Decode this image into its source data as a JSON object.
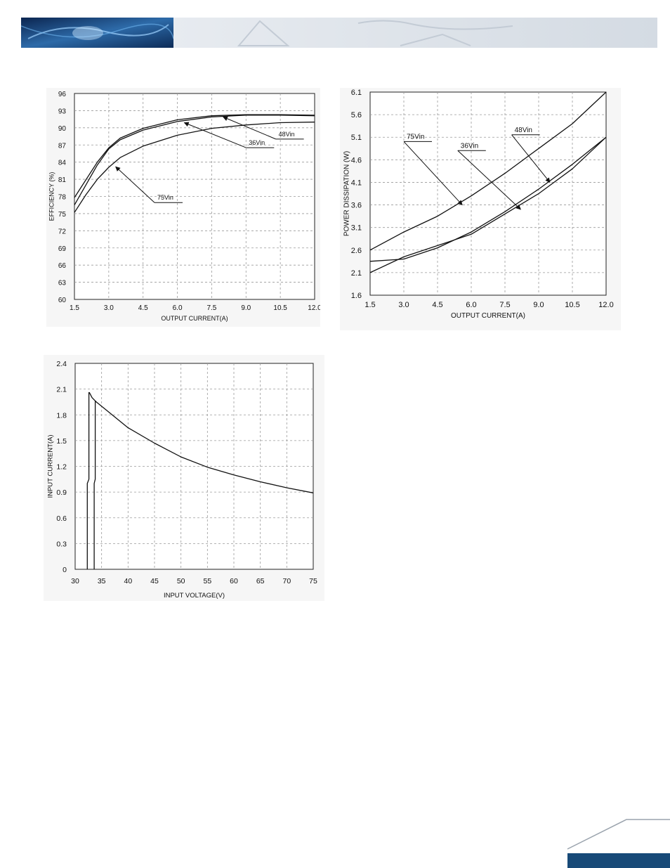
{
  "header": {
    "banner_icon": "brand-graphic-banner",
    "colors": {
      "banner_dark": "#0e2b55",
      "banner_light": "#dde3ea",
      "footer_bar": "#184a78"
    }
  },
  "chart_data": [
    {
      "type": "line",
      "xlabel": "OUTPUT CURRENT(A)",
      "ylabel": "EFFICIENCY (%)",
      "xlim": [
        1.5,
        12.0
      ],
      "ylim": [
        60,
        96
      ],
      "xticks": [
        "1.5",
        "3.0",
        "4.5",
        "6.0",
        "7.5",
        "9.0",
        "10.5",
        "12.0"
      ],
      "yticks": [
        "60",
        "63",
        "66",
        "69",
        "72",
        "75",
        "78",
        "81",
        "84",
        "87",
        "90",
        "93",
        "96"
      ],
      "grid": true,
      "series": [
        {
          "name": "48Vin",
          "x": [
            1.5,
            2.0,
            2.5,
            3.0,
            3.5,
            4.5,
            6.0,
            7.5,
            9.0,
            10.5,
            12.0
          ],
          "values": [
            77.8,
            80.9,
            84.0,
            86.5,
            88.2,
            89.9,
            91.4,
            92.1,
            92.3,
            92.3,
            92.2
          ]
        },
        {
          "name": "36Vin",
          "x": [
            1.5,
            2.0,
            2.5,
            3.0,
            3.5,
            4.5,
            6.0,
            7.5,
            9.0,
            10.5,
            12.0
          ],
          "values": [
            76.5,
            80.0,
            83.5,
            86.3,
            87.9,
            89.6,
            91.1,
            91.9,
            92.2,
            92.2,
            92.1
          ]
        },
        {
          "name": "75Vin",
          "x": [
            1.5,
            2.0,
            2.5,
            3.0,
            3.5,
            4.5,
            6.0,
            7.5,
            9.0,
            10.5,
            12.0
          ],
          "values": [
            75.2,
            78.3,
            81.0,
            83.1,
            84.8,
            86.8,
            88.7,
            89.9,
            90.5,
            90.9,
            91.0
          ]
        }
      ],
      "annotations": [
        {
          "text": "48Vin",
          "arrow_to": [
            8.0,
            91.9
          ],
          "label_at": [
            10.3,
            88.4
          ]
        },
        {
          "text": "36Vin",
          "arrow_to": [
            6.3,
            90.9
          ],
          "label_at": [
            9.0,
            86.9
          ]
        },
        {
          "text": "75Vin",
          "arrow_to": [
            3.3,
            83.2
          ],
          "label_at": [
            5.0,
            77.3
          ]
        }
      ]
    },
    {
      "type": "line",
      "xlabel": "OUTPUT CURRENT(A)",
      "ylabel": "POWER DISSIPATION (W)",
      "xlim": [
        1.5,
        12.0
      ],
      "ylim": [
        1.6,
        6.1
      ],
      "xticks": [
        "1.5",
        "3.0",
        "4.5",
        "6.0",
        "7.5",
        "9.0",
        "10.5",
        "12.0"
      ],
      "yticks": [
        "1.6",
        "2.1",
        "2.6",
        "3.1",
        "3.6",
        "4.1",
        "4.6",
        "5.1",
        "5.6",
        "6.1"
      ],
      "grid": true,
      "series": [
        {
          "name": "75Vin",
          "x": [
            1.5,
            3.0,
            4.5,
            6.0,
            7.5,
            9.0,
            10.5,
            12.0
          ],
          "values": [
            2.6,
            3.0,
            3.35,
            3.8,
            4.3,
            4.85,
            5.4,
            6.1
          ]
        },
        {
          "name": "48Vin",
          "x": [
            1.5,
            3.0,
            4.5,
            6.0,
            7.5,
            9.0,
            10.5,
            12.0
          ],
          "values": [
            2.35,
            2.4,
            2.65,
            3.0,
            3.45,
            3.95,
            4.5,
            5.1
          ]
        },
        {
          "name": "36Vin",
          "x": [
            1.5,
            3.0,
            4.5,
            6.0,
            7.5,
            9.0,
            10.5,
            12.0
          ],
          "values": [
            2.1,
            2.45,
            2.7,
            2.95,
            3.4,
            3.85,
            4.4,
            5.1
          ]
        }
      ],
      "annotations": [
        {
          "text": "75Vin",
          "arrow_to": [
            5.6,
            3.6
          ],
          "label_at": [
            3.0,
            5.05
          ]
        },
        {
          "text": "36Vin",
          "arrow_to": [
            8.2,
            3.5
          ],
          "label_at": [
            5.4,
            4.85
          ]
        },
        {
          "text": "48Vin",
          "arrow_to": [
            9.5,
            4.1
          ],
          "label_at": [
            7.8,
            5.2
          ]
        }
      ]
    },
    {
      "type": "line",
      "xlabel": "INPUT VOLTAGE(V)",
      "ylabel": "INPUT CURRENT(A)",
      "xlim": [
        30,
        75
      ],
      "ylim": [
        0,
        2.4
      ],
      "xticks": [
        "30",
        "35",
        "40",
        "45",
        "50",
        "55",
        "60",
        "65",
        "70",
        "75"
      ],
      "yticks": [
        "0",
        "0.3",
        "0.6",
        "0.9",
        "1.2",
        "1.5",
        "1.8",
        "2.1",
        "2.4"
      ],
      "grid": true,
      "series": [
        {
          "x": [
            32.3,
            32.3,
            32.6,
            32.6,
            32.7,
            33.2,
            34.0,
            36.0,
            40.0,
            45.0,
            50.0,
            55.0,
            60.0,
            65.0,
            70.0,
            75.0
          ],
          "values": [
            0,
            1.0,
            1.05,
            2.06,
            2.06,
            2.0,
            1.95,
            1.85,
            1.65,
            1.47,
            1.31,
            1.19,
            1.1,
            1.02,
            0.95,
            0.89
          ]
        },
        {
          "x": [
            33.6,
            33.6,
            33.8,
            33.8,
            34.0
          ],
          "values": [
            0,
            1.0,
            1.05,
            1.96,
            1.95
          ]
        }
      ]
    }
  ]
}
